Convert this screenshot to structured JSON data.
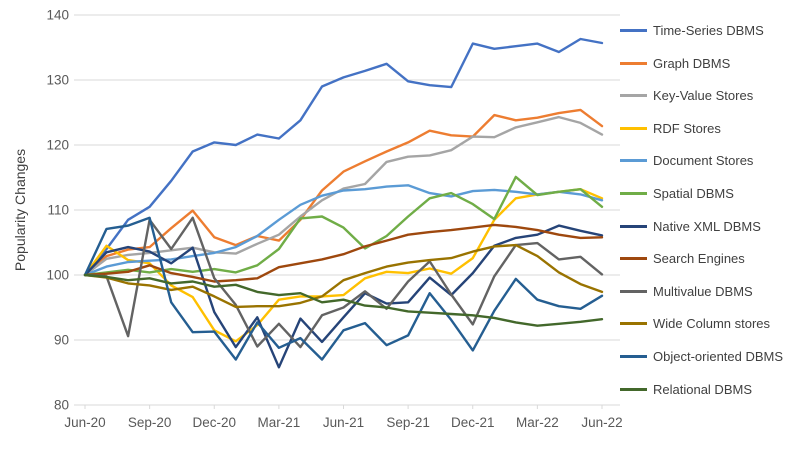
{
  "chart_data": {
    "type": "line",
    "title": "",
    "xlabel": "",
    "ylabel": "Popularity Changes",
    "ylim": [
      80,
      140
    ],
    "ytick_step": 10,
    "grid": "horizontal",
    "legend_position": "right",
    "x_categories": [
      "Jun-20",
      "Jul-20",
      "Aug-20",
      "Sep-20",
      "Oct-20",
      "Nov-20",
      "Dec-20",
      "Jan-21",
      "Feb-21",
      "Mar-21",
      "Apr-21",
      "May-21",
      "Jun-21",
      "Jul-21",
      "Aug-21",
      "Sep-21",
      "Oct-21",
      "Nov-21",
      "Dec-21",
      "Jan-22",
      "Feb-22",
      "Mar-22",
      "Apr-22",
      "May-22",
      "Jun-22"
    ],
    "x_ticks_shown": [
      "Jun-20",
      "Sep-20",
      "Dec-20",
      "Mar-21",
      "Jun-21",
      "Sep-21",
      "Dec-21",
      "Mar-22",
      "Jun-22"
    ],
    "series": [
      {
        "name": "Time-Series DBMS",
        "color": "#4472C4",
        "values": [
          100,
          104,
          108.5,
          110.5,
          114.5,
          119,
          120.4,
          120,
          121.6,
          121,
          123.8,
          129,
          130.4,
          131.4,
          132.5,
          129.8,
          129.2,
          128.9,
          135.6,
          134.8,
          135.2,
          135.6,
          134.3,
          136.3,
          135.7
        ]
      },
      {
        "name": "Graph DBMS",
        "color": "#ED7D31",
        "values": [
          100,
          102.9,
          103.9,
          104.3,
          107.2,
          109.9,
          105.8,
          104.6,
          106,
          105.3,
          108.5,
          113,
          115.9,
          117.5,
          119,
          120.4,
          122.2,
          121.5,
          121.3,
          124.6,
          123.8,
          124.2,
          124.9,
          125.4,
          122.9
        ]
      },
      {
        "name": "Key-Value Stores",
        "color": "#A5A5A5",
        "values": [
          100,
          102.5,
          103.1,
          103.4,
          103.8,
          104.2,
          103.5,
          103.3,
          104.8,
          106.2,
          109,
          111.5,
          113.3,
          114,
          117.4,
          118.2,
          118.4,
          119.2,
          121.3,
          121.2,
          122.7,
          123.5,
          124.3,
          123.4,
          121.6
        ]
      },
      {
        "name": "RDF Stores",
        "color": "#FFC000",
        "values": [
          100,
          104.5,
          102.3,
          101.8,
          98.4,
          96.6,
          91.5,
          89.8,
          92.3,
          96.2,
          96.7,
          96.7,
          96.9,
          99.5,
          100.5,
          100.3,
          101,
          100.2,
          102.6,
          108.5,
          111.8,
          112.4,
          112.8,
          113.2,
          111.8
        ]
      },
      {
        "name": "Document Stores",
        "color": "#5B9BD5",
        "values": [
          100,
          101.3,
          102,
          102.2,
          102.4,
          102.9,
          103.4,
          104.3,
          106,
          108.5,
          110.8,
          112.2,
          113,
          113.2,
          113.6,
          113.8,
          112.6,
          112.1,
          112.9,
          113.1,
          112.8,
          112.4,
          112.8,
          112.4,
          111.5
        ]
      },
      {
        "name": "Spatial DBMS",
        "color": "#70AD47",
        "values": [
          100,
          100.4,
          100.8,
          100.4,
          100.9,
          100.5,
          100.9,
          100.4,
          101.5,
          104,
          108.7,
          109,
          107.3,
          104.1,
          106,
          109,
          111.8,
          112.6,
          110.9,
          108.6,
          115.1,
          112.3,
          112.8,
          113.2,
          110.5
        ]
      },
      {
        "name": "Native XML DBMS",
        "color": "#264478",
        "values": [
          100,
          103.5,
          104.3,
          103.6,
          101.8,
          104.2,
          94.3,
          88.9,
          93.5,
          85.8,
          93.3,
          89.7,
          93.5,
          97.2,
          95.6,
          95.8,
          99.6,
          96.9,
          100.3,
          104.5,
          105.7,
          106.2,
          107.6,
          106.8,
          106.1
        ]
      },
      {
        "name": "Search Engines",
        "color": "#9E480E",
        "values": [
          100,
          100.2,
          100.5,
          101.5,
          100.3,
          99.7,
          99,
          99.2,
          99.5,
          101.2,
          101.8,
          102.4,
          103.2,
          104.4,
          105.3,
          106.2,
          106.6,
          106.9,
          107.3,
          107.7,
          107.4,
          106.9,
          106.2,
          105.7,
          105.8
        ]
      },
      {
        "name": "Multivalue DBMS",
        "color": "#636363",
        "values": [
          100,
          99.8,
          90.6,
          108.5,
          104,
          108.8,
          99.5,
          95.4,
          89,
          92.5,
          88.9,
          93.8,
          95,
          97.5,
          94.8,
          99,
          102.1,
          97,
          92.4,
          99.8,
          104.6,
          104.9,
          102.4,
          102.8,
          100.1
        ]
      },
      {
        "name": "Wide Column stores",
        "color": "#997300",
        "values": [
          100,
          99.6,
          98.7,
          98.4,
          97.7,
          98.2,
          96.7,
          95.1,
          95.2,
          95.2,
          95.7,
          96.7,
          99.2,
          100.3,
          101.3,
          101.9,
          102.3,
          102.6,
          103.6,
          104.4,
          104.6,
          102.9,
          100.4,
          98.6,
          97.4
        ]
      },
      {
        "name": "Object-oriented DBMS",
        "color": "#255E91",
        "values": [
          100,
          107.1,
          107.6,
          108.8,
          95.8,
          91.2,
          91.3,
          87,
          92.7,
          88.8,
          90.3,
          87,
          91.5,
          92.6,
          89.2,
          90.7,
          97.2,
          93.1,
          88.4,
          94.5,
          99.4,
          96.2,
          95.2,
          94.8,
          96.8
        ]
      },
      {
        "name": "Relational DBMS",
        "color": "#43682B",
        "values": [
          100,
          99.7,
          99.2,
          99.5,
          98.7,
          99,
          98.2,
          98.5,
          97.4,
          96.9,
          97.2,
          95.8,
          96.2,
          95.3,
          95,
          94.4,
          94.2,
          94,
          93.8,
          93.4,
          92.7,
          92.2,
          92.5,
          92.8,
          93.2
        ]
      }
    ],
    "yticks": [
      80,
      90,
      100,
      110,
      120,
      130,
      140
    ]
  },
  "colors": {
    "gridline": "#D9D9D9",
    "axis_text": "#595959",
    "legend_text": "#404040",
    "background": "#FFFFFF"
  }
}
